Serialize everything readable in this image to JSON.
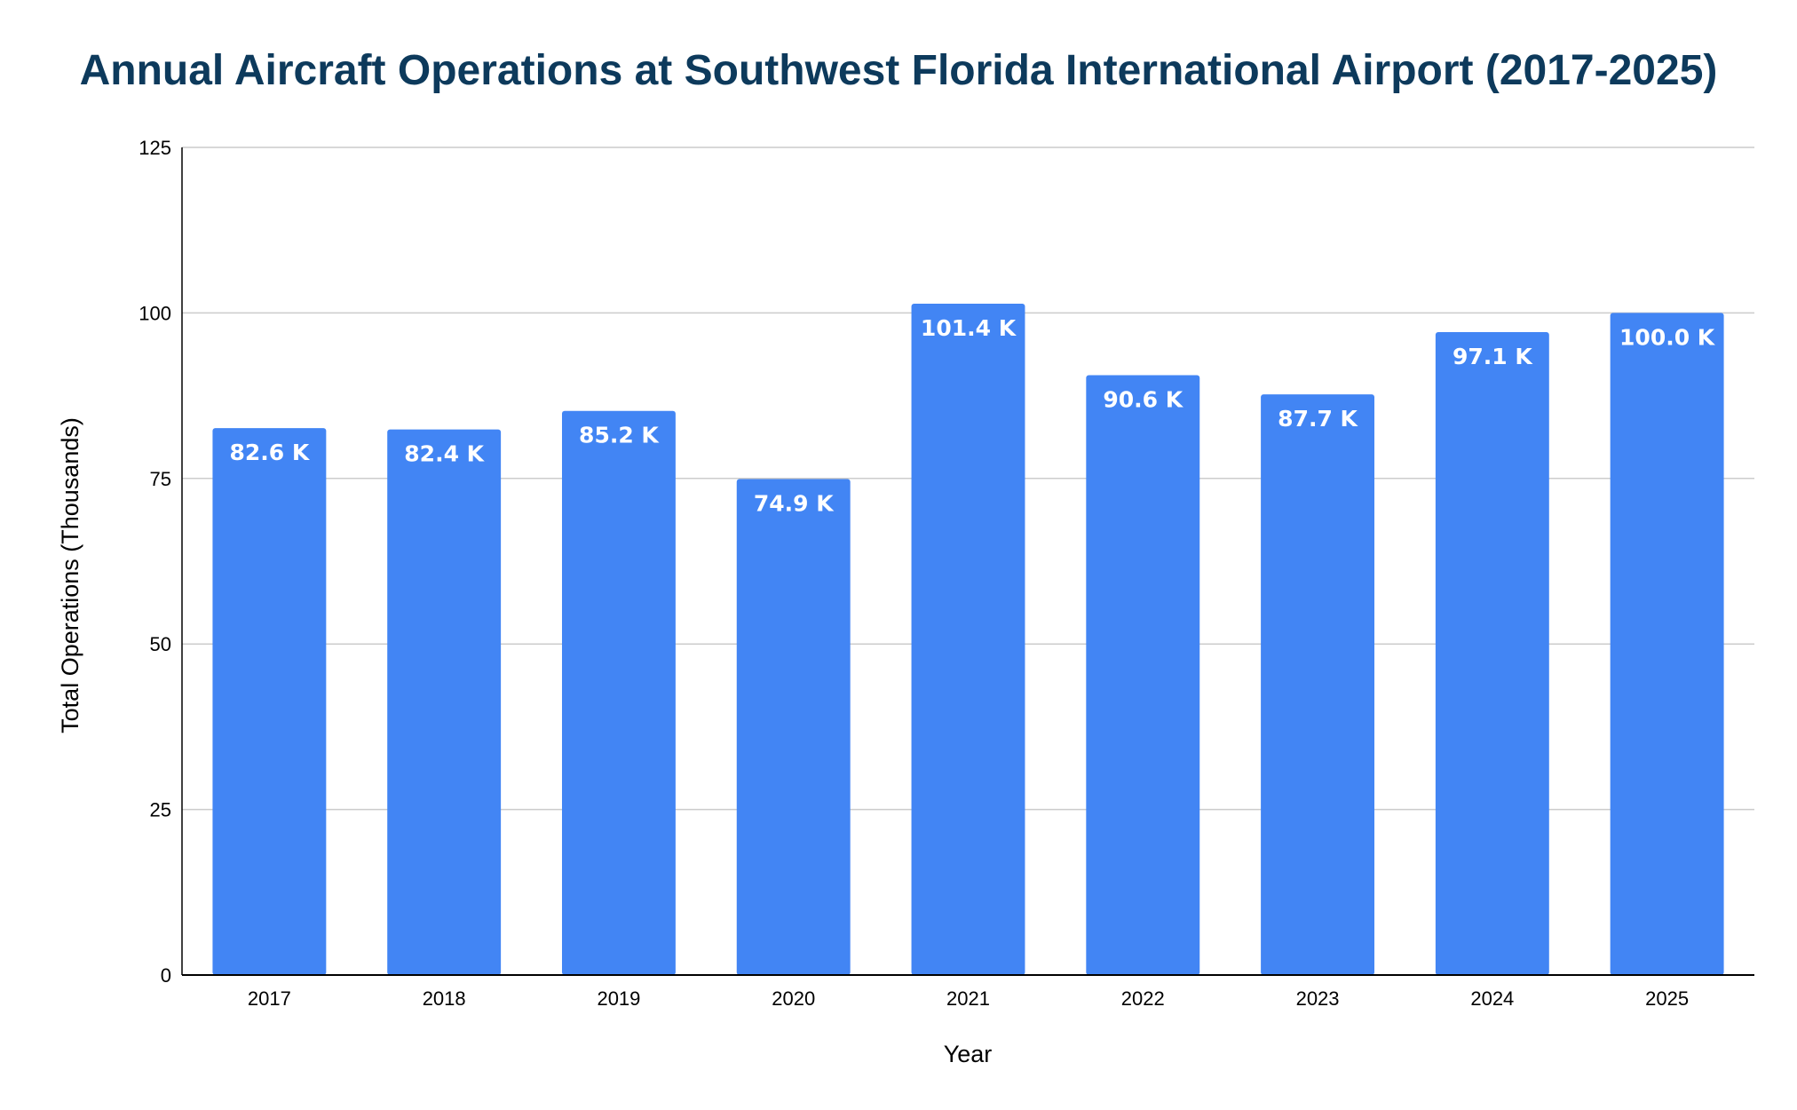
{
  "chart_data": {
    "type": "bar",
    "title": "Annual Aircraft Operations at Southwest Florida International Airport (2017-2025)",
    "xlabel": "Year",
    "ylabel": "Total Operations (Thousands)",
    "categories": [
      "2017",
      "2018",
      "2019",
      "2020",
      "2021",
      "2022",
      "2023",
      "2024",
      "2025"
    ],
    "values": [
      82.6,
      82.4,
      85.2,
      74.9,
      101.4,
      90.6,
      87.7,
      97.1,
      100.0
    ],
    "data_labels": [
      "82.6 K",
      "82.4 K",
      "85.2 K",
      "74.9 K",
      "101.4 K",
      "90.6 K",
      "87.7 K",
      "97.1 K",
      "100.0 K"
    ],
    "ylim": [
      0,
      125
    ],
    "yticks": [
      "0",
      "25",
      "50",
      "75",
      "100",
      "125"
    ],
    "grid": true,
    "legend": "none",
    "colors": {
      "bar": "#4285f4",
      "title": "#0d3a5c",
      "grid": "#cccccc",
      "axis": "#000000",
      "data_label": "#ffffff"
    }
  }
}
